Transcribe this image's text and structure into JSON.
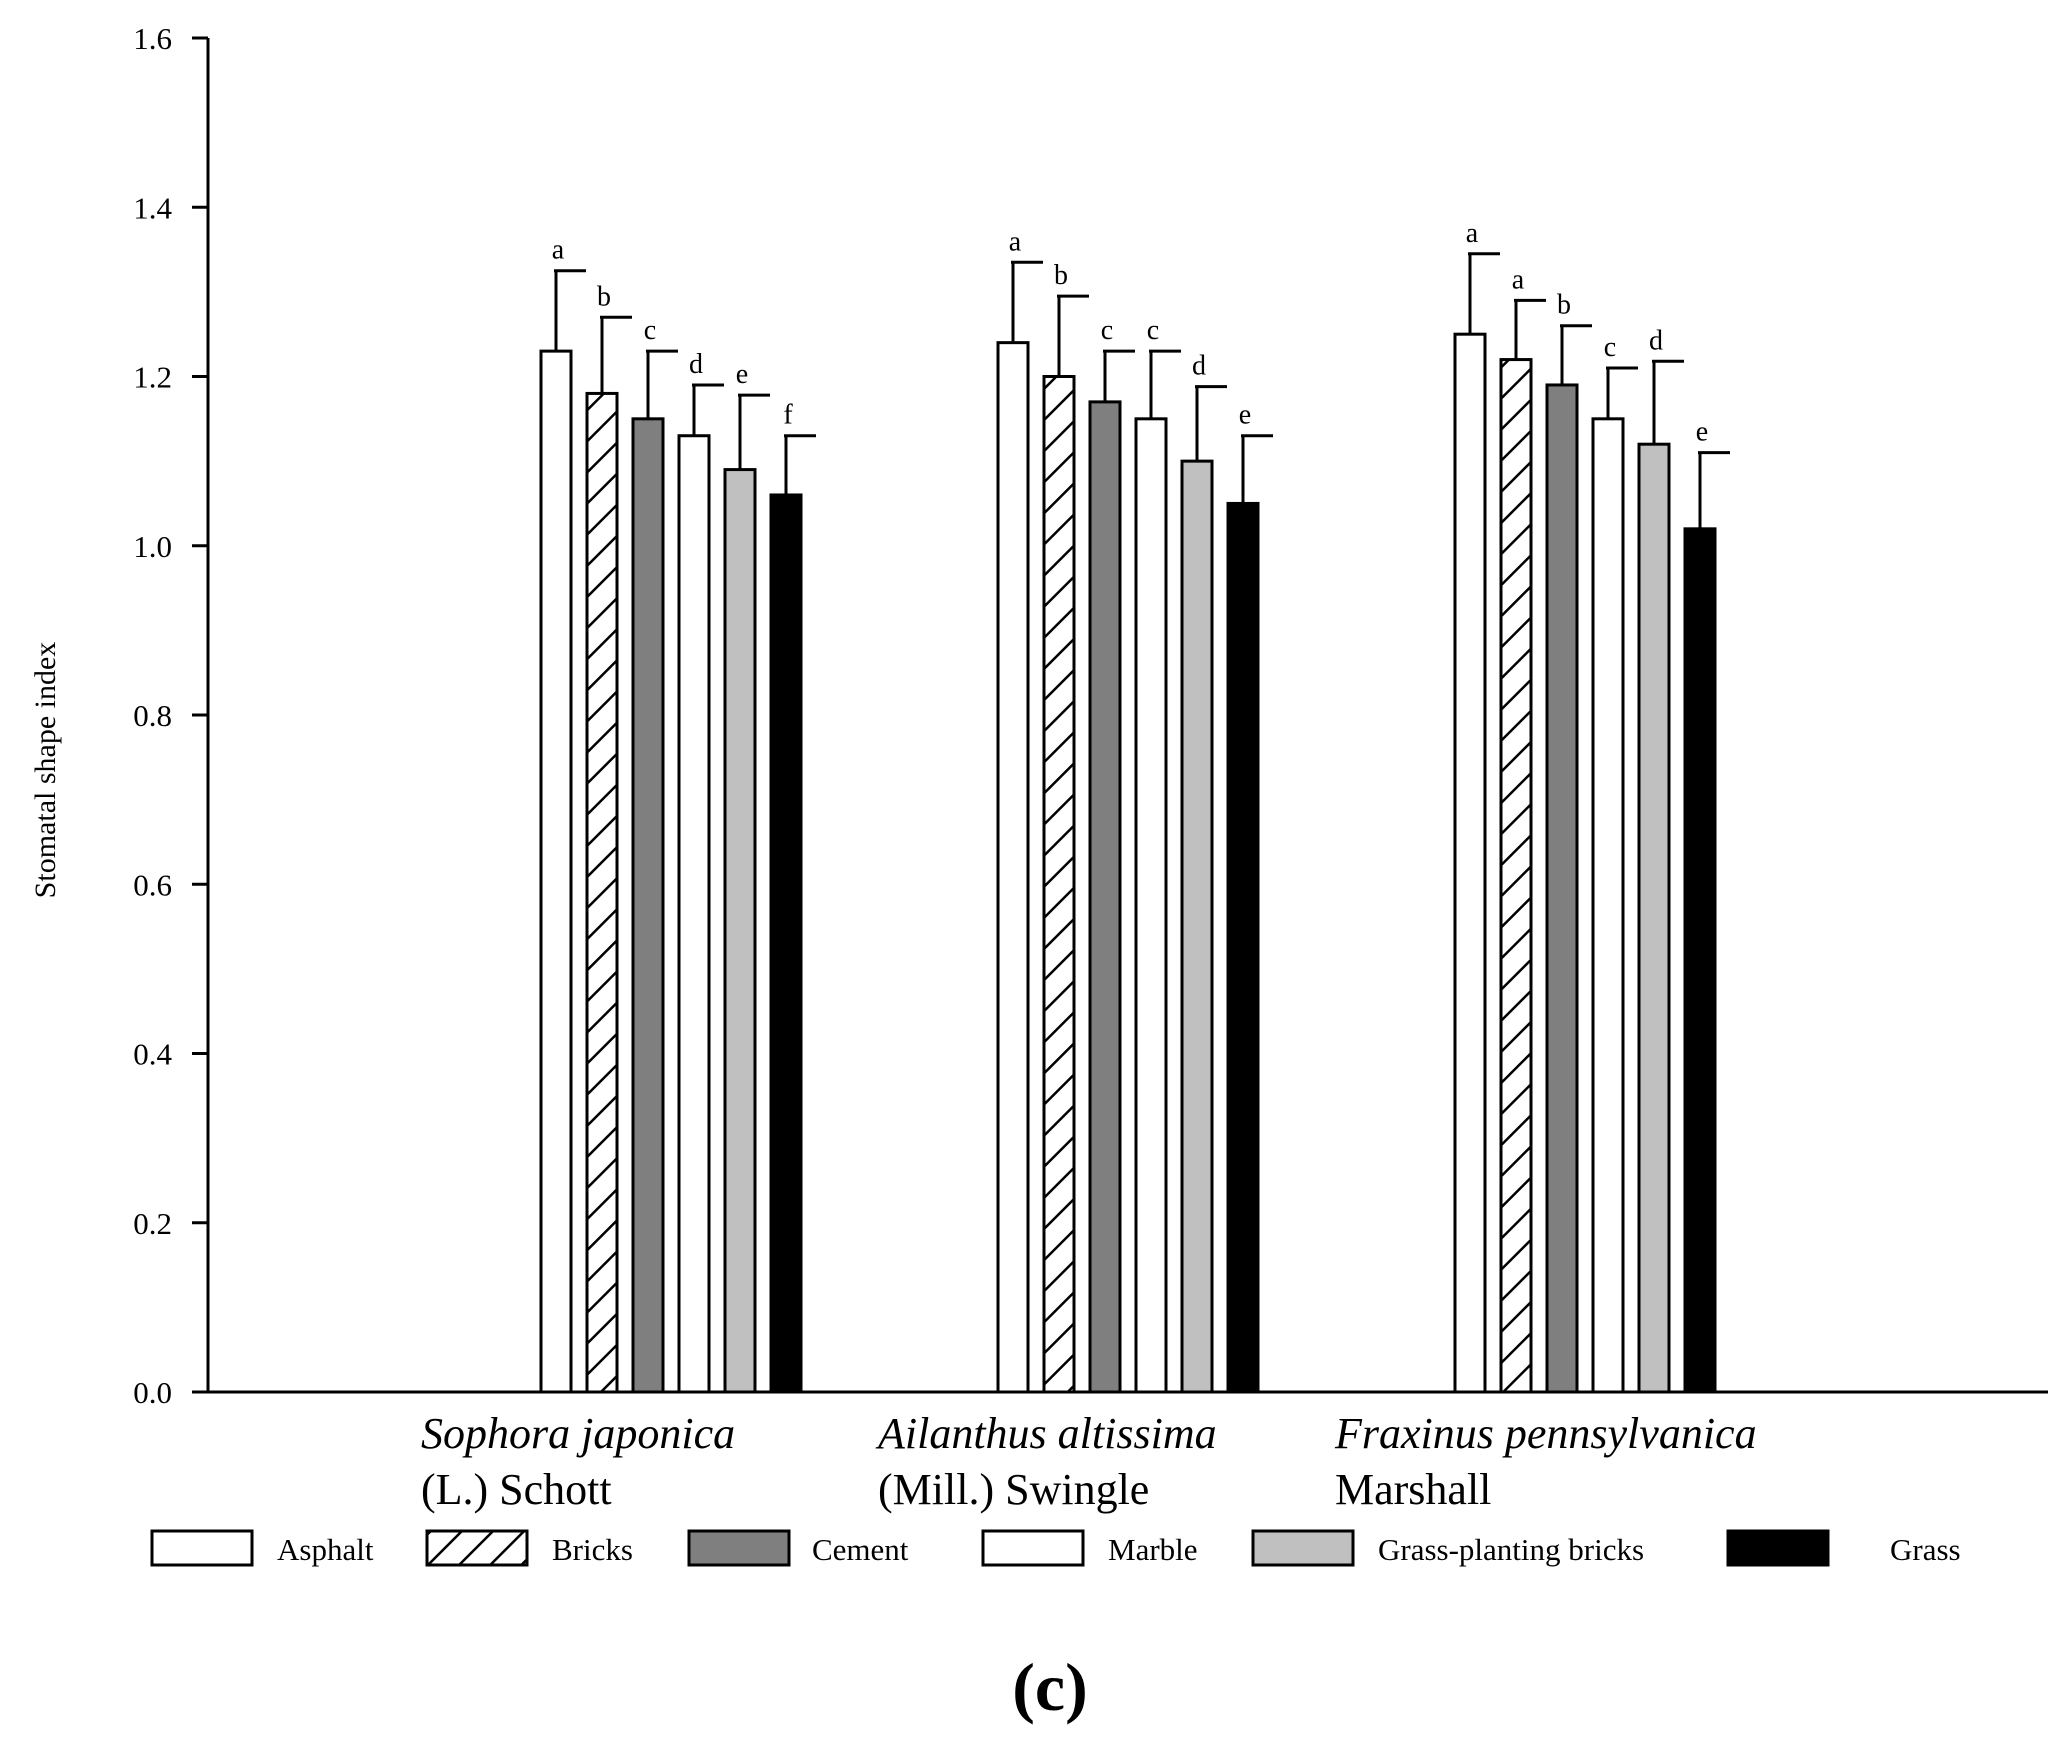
{
  "chart_data": {
    "type": "bar",
    "ylabel": "Stomatal shape index",
    "xlabel": "",
    "ylim": [
      0,
      1.6
    ],
    "yticks": [
      "0.0",
      "0.2",
      "0.4",
      "0.6",
      "0.8",
      "1.0",
      "1.2",
      "1.4",
      "1.6"
    ],
    "categories": [
      {
        "italic": "Sophora japonica",
        "authority": "(L.) Schott"
      },
      {
        "italic": "Ailanthus altissima",
        "authority": "(Mill.) Swingle"
      },
      {
        "italic": "Fraxinus pennsylvanica",
        "authority": "Marshall"
      }
    ],
    "series": [
      {
        "name": "Asphalt",
        "pattern": "white",
        "values": [
          1.23,
          1.24,
          1.25
        ],
        "errors": [
          0.095,
          0.095,
          0.095
        ],
        "letters": [
          "a",
          "a",
          "a"
        ]
      },
      {
        "name": "Bricks",
        "pattern": "hatch",
        "values": [
          1.18,
          1.2,
          1.22
        ],
        "errors": [
          0.09,
          0.095,
          0.07
        ],
        "letters": [
          "b",
          "b",
          "a"
        ]
      },
      {
        "name": "Cement",
        "pattern": "dark-gray",
        "values": [
          1.15,
          1.17,
          1.19
        ],
        "errors": [
          0.08,
          0.06,
          0.07
        ],
        "letters": [
          "c",
          "c",
          "b"
        ]
      },
      {
        "name": "Marble",
        "pattern": "white",
        "values": [
          1.13,
          1.15,
          1.15
        ],
        "errors": [
          0.06,
          0.08,
          0.06
        ],
        "letters": [
          "d",
          "c",
          "c"
        ]
      },
      {
        "name": "Grass-planting bricks",
        "pattern": "light-gray",
        "values": [
          1.09,
          1.1,
          1.12
        ],
        "errors": [
          0.088,
          0.088,
          0.098
        ],
        "letters": [
          "e",
          "d",
          "d"
        ]
      },
      {
        "name": "Grass",
        "pattern": "black",
        "values": [
          1.06,
          1.05,
          1.02
        ],
        "errors": [
          0.07,
          0.08,
          0.09
        ],
        "letters": [
          "f",
          "e",
          "e"
        ]
      }
    ],
    "legend_position": "bottom",
    "panel_label": "(c)",
    "colors": {
      "white": "#ffffff",
      "dark-gray": "#7f7f7f",
      "light-gray": "#c0c0c0",
      "black": "#000000",
      "stroke": "#000000"
    }
  }
}
